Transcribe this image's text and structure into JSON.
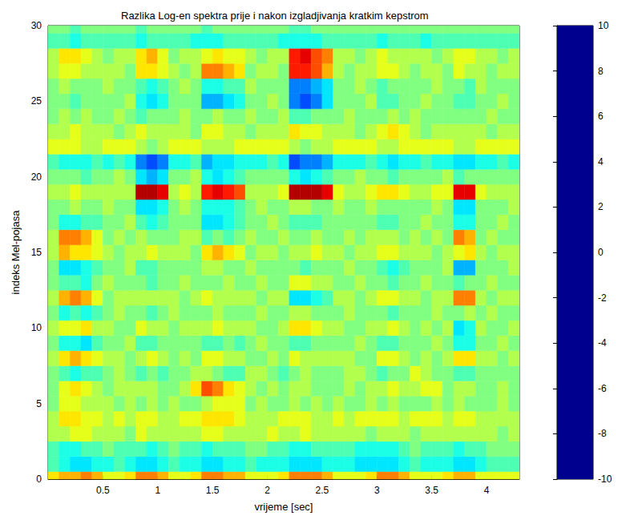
{
  "chart_data": {
    "type": "heatmap",
    "title": "Razlika Log-en spektra prije i nakon izgladjivanja kratkim kepstrom",
    "x_label": "vrijeme [sec]",
    "y_label": "indeks Mel-pojasa",
    "color": "jet",
    "x": [
      0.05,
      0.15,
      0.25,
      0.35,
      0.45,
      0.55,
      0.65,
      0.75,
      0.85,
      0.95,
      1.05,
      1.15,
      1.25,
      1.35,
      1.45,
      1.55,
      1.65,
      1.75,
      1.85,
      1.95,
      2.05,
      2.15,
      2.25,
      2.35,
      2.45,
      2.55,
      2.65,
      2.75,
      2.85,
      2.95,
      3.05,
      3.15,
      3.25,
      3.35,
      3.45,
      3.55,
      3.65,
      3.75,
      3.85,
      3.95,
      4.05,
      4.15,
      4.25
    ],
    "y": [
      0,
      1,
      2,
      3,
      4,
      5,
      6,
      7,
      8,
      9,
      10,
      11,
      12,
      13,
      14,
      15,
      16,
      17,
      18,
      19,
      20,
      21,
      22,
      23,
      24,
      25,
      26,
      27,
      28,
      29,
      30
    ],
    "z": [
      [
        3,
        4,
        4,
        5,
        4,
        2,
        2,
        3,
        5,
        5,
        4,
        2,
        2,
        3,
        5,
        5,
        4,
        4,
        2,
        2,
        2,
        3,
        5,
        5,
        5,
        4,
        2,
        2,
        2,
        3,
        5,
        5,
        4,
        2,
        2,
        2,
        3,
        4,
        4,
        2,
        2,
        2,
        2
      ],
      [
        -1,
        -2,
        -3,
        -3,
        -2,
        -2,
        -1,
        -2,
        -3,
        -3,
        -2,
        -1,
        -2,
        -2,
        -3,
        -3,
        -2,
        -2,
        -1,
        -2,
        -2,
        -2,
        -3,
        -3,
        -3,
        -2,
        -2,
        -2,
        -3,
        -3,
        -3,
        -3,
        -2,
        -1,
        -2,
        -2,
        -2,
        -3,
        -3,
        -2,
        -1,
        -1,
        -1
      ],
      [
        -1,
        -2,
        -2,
        -1,
        -1,
        0,
        -1,
        -1,
        -1,
        -2,
        -1,
        0,
        -1,
        -1,
        -2,
        -1,
        -1,
        -1,
        0,
        0,
        -1,
        -1,
        -2,
        -2,
        -1,
        -1,
        -1,
        -1,
        -2,
        -2,
        -2,
        -2,
        -1,
        0,
        -1,
        -1,
        -1,
        -2,
        -1,
        -1,
        0,
        0,
        0
      ],
      [
        1,
        1,
        2,
        2,
        1,
        1,
        1,
        0,
        2,
        1,
        1,
        1,
        1,
        1,
        2,
        2,
        1,
        1,
        1,
        1,
        2,
        1,
        1,
        2,
        1,
        1,
        1,
        1,
        1,
        0,
        1,
        1,
        1,
        0,
        1,
        1,
        1,
        1,
        1,
        1,
        1,
        0,
        1
      ],
      [
        1,
        3,
        3,
        2,
        2,
        1,
        2,
        1,
        2,
        2,
        1,
        1,
        2,
        2,
        3,
        3,
        3,
        2,
        1,
        1,
        1,
        2,
        2,
        2,
        1,
        1,
        2,
        1,
        2,
        2,
        2,
        2,
        1,
        2,
        2,
        2,
        1,
        2,
        2,
        1,
        1,
        1,
        1
      ],
      [
        0,
        2,
        2,
        1,
        1,
        1,
        0,
        1,
        0,
        1,
        0,
        1,
        0,
        0,
        1,
        2,
        2,
        2,
        0,
        1,
        0,
        0,
        1,
        0,
        1,
        0,
        1,
        0,
        0,
        1,
        0,
        1,
        0,
        0,
        0,
        1,
        0,
        1,
        0,
        0,
        0,
        1,
        0
      ],
      [
        0,
        2,
        3,
        2,
        1,
        0,
        1,
        1,
        1,
        1,
        0,
        0,
        1,
        3,
        6,
        5,
        3,
        2,
        1,
        0,
        1,
        0,
        1,
        1,
        0,
        0,
        0,
        1,
        0,
        1,
        1,
        2,
        1,
        1,
        2,
        2,
        0,
        1,
        1,
        0,
        0,
        1,
        0
      ],
      [
        0,
        -1,
        -2,
        -1,
        -1,
        0,
        1,
        0,
        -1,
        0,
        -1,
        0,
        0,
        1,
        1,
        0,
        -1,
        -1,
        1,
        1,
        0,
        -1,
        0,
        1,
        0,
        0,
        0,
        1,
        1,
        0,
        -1,
        0,
        0,
        2,
        1,
        0,
        0,
        -1,
        -1,
        0,
        0,
        0,
        0
      ],
      [
        1,
        3,
        4,
        3,
        2,
        1,
        1,
        0,
        1,
        2,
        1,
        0,
        1,
        0,
        2,
        2,
        1,
        1,
        0,
        0,
        1,
        0,
        2,
        1,
        1,
        1,
        1,
        1,
        0,
        0,
        2,
        2,
        1,
        0,
        1,
        0,
        1,
        3,
        3,
        1,
        1,
        0,
        1
      ],
      [
        0,
        -2,
        -2,
        -3,
        -1,
        0,
        0,
        1,
        -1,
        -1,
        0,
        0,
        0,
        0,
        -1,
        -1,
        0,
        -1,
        0,
        1,
        0,
        0,
        -1,
        -1,
        0,
        0,
        0,
        0,
        1,
        0,
        -1,
        -1,
        0,
        0,
        0,
        1,
        0,
        -2,
        -2,
        0,
        0,
        1,
        0
      ],
      [
        1,
        2,
        2,
        3,
        1,
        1,
        0,
        0,
        2,
        1,
        1,
        0,
        1,
        1,
        1,
        2,
        1,
        1,
        1,
        0,
        0,
        1,
        3,
        3,
        2,
        1,
        1,
        0,
        0,
        1,
        1,
        2,
        1,
        0,
        1,
        0,
        1,
        -3,
        -2,
        1,
        0,
        0,
        1
      ],
      [
        0,
        -2,
        -1,
        -2,
        -1,
        0,
        1,
        0,
        0,
        -1,
        0,
        1,
        0,
        0,
        0,
        1,
        0,
        0,
        0,
        1,
        0,
        0,
        1,
        1,
        0,
        0,
        0,
        1,
        0,
        0,
        0,
        -1,
        0,
        0,
        0,
        1,
        0,
        0,
        1,
        0,
        1,
        0,
        0
      ],
      [
        1,
        4,
        5,
        4,
        2,
        0,
        1,
        1,
        1,
        1,
        1,
        1,
        0,
        1,
        2,
        1,
        1,
        1,
        1,
        0,
        1,
        1,
        -3,
        -3,
        -2,
        -1,
        1,
        1,
        0,
        1,
        2,
        2,
        1,
        1,
        0,
        1,
        1,
        5,
        5,
        1,
        0,
        1,
        1
      ],
      [
        0,
        -1,
        -1,
        -2,
        0,
        1,
        0,
        0,
        0,
        -1,
        0,
        0,
        1,
        0,
        0,
        0,
        1,
        0,
        0,
        1,
        0,
        0,
        2,
        2,
        1,
        1,
        0,
        0,
        1,
        0,
        0,
        -1,
        0,
        0,
        1,
        0,
        0,
        -1,
        0,
        0,
        1,
        0,
        0
      ],
      [
        0,
        -3,
        -3,
        -2,
        -1,
        0,
        0,
        1,
        -1,
        -1,
        0,
        0,
        0,
        0,
        1,
        1,
        0,
        0,
        1,
        0,
        0,
        0,
        0,
        -1,
        0,
        0,
        0,
        1,
        0,
        0,
        -1,
        -2,
        -1,
        0,
        0,
        0,
        1,
        -4,
        -4,
        0,
        0,
        0,
        1
      ],
      [
        1,
        4,
        3,
        3,
        2,
        1,
        0,
        1,
        1,
        2,
        1,
        1,
        1,
        0,
        3,
        4,
        3,
        2,
        0,
        1,
        1,
        0,
        1,
        1,
        2,
        1,
        1,
        0,
        1,
        1,
        2,
        2,
        1,
        1,
        1,
        0,
        1,
        2,
        3,
        1,
        0,
        1,
        1
      ],
      [
        1,
        5,
        5,
        4,
        2,
        0,
        1,
        0,
        1,
        0,
        0,
        0,
        1,
        1,
        -1,
        0,
        -1,
        0,
        1,
        0,
        0,
        1,
        0,
        0,
        1,
        0,
        0,
        1,
        0,
        1,
        1,
        1,
        0,
        1,
        0,
        1,
        0,
        5,
        4,
        0,
        1,
        0,
        0
      ],
      [
        0,
        -2,
        -2,
        -1,
        -1,
        0,
        0,
        1,
        -1,
        -2,
        -1,
        0,
        0,
        0,
        -3,
        -3,
        -2,
        -1,
        0,
        0,
        1,
        0,
        -1,
        -1,
        -1,
        0,
        0,
        0,
        0,
        0,
        -1,
        -1,
        0,
        0,
        1,
        0,
        0,
        -2,
        -2,
        0,
        0,
        1,
        0
      ],
      [
        0,
        0,
        1,
        0,
        0,
        1,
        0,
        0,
        -3,
        -3,
        -2,
        0,
        1,
        0,
        -2,
        -2,
        -2,
        -1,
        0,
        1,
        0,
        0,
        1,
        1,
        0,
        0,
        1,
        0,
        0,
        1,
        0,
        0,
        0,
        0,
        0,
        1,
        0,
        -3,
        -3,
        0,
        0,
        0,
        1
      ],
      [
        1,
        1,
        2,
        1,
        1,
        1,
        1,
        1,
        9,
        9,
        8,
        1,
        2,
        1,
        7,
        8,
        7,
        6,
        1,
        1,
        1,
        2,
        9,
        9,
        9,
        8,
        2,
        1,
        1,
        2,
        3,
        3,
        2,
        1,
        1,
        2,
        2,
        8,
        8,
        2,
        1,
        1,
        1
      ],
      [
        0,
        0,
        0,
        -1,
        0,
        0,
        1,
        0,
        -3,
        -4,
        -3,
        0,
        0,
        1,
        -2,
        -3,
        -2,
        -1,
        0,
        0,
        0,
        0,
        -2,
        -3,
        -2,
        -1,
        0,
        0,
        1,
        0,
        0,
        -1,
        0,
        0,
        0,
        0,
        1,
        -1,
        0,
        0,
        0,
        0,
        0
      ],
      [
        -1,
        -2,
        -2,
        -2,
        -1,
        -2,
        -1,
        -2,
        -5,
        -6,
        -5,
        -2,
        -2,
        -1,
        -4,
        -3,
        -3,
        -2,
        -2,
        -2,
        -1,
        -2,
        -6,
        -5,
        -5,
        -4,
        -2,
        -2,
        -2,
        -1,
        -2,
        -3,
        -2,
        -2,
        -1,
        -2,
        -2,
        -3,
        -3,
        -2,
        -2,
        -1,
        -2
      ],
      [
        2,
        2,
        2,
        1,
        1,
        2,
        2,
        2,
        1,
        0,
        1,
        2,
        2,
        2,
        1,
        1,
        1,
        2,
        2,
        2,
        2,
        2,
        1,
        0,
        1,
        1,
        2,
        2,
        2,
        2,
        1,
        1,
        2,
        2,
        2,
        2,
        2,
        1,
        1,
        2,
        2,
        2,
        2
      ],
      [
        1,
        1,
        2,
        1,
        1,
        1,
        0,
        1,
        2,
        1,
        1,
        1,
        1,
        0,
        2,
        2,
        1,
        1,
        0,
        1,
        1,
        1,
        3,
        2,
        2,
        1,
        1,
        1,
        0,
        1,
        2,
        3,
        2,
        1,
        0,
        1,
        1,
        1,
        1,
        1,
        0,
        1,
        1
      ],
      [
        0,
        1,
        0,
        1,
        0,
        0,
        1,
        0,
        -1,
        0,
        0,
        0,
        1,
        0,
        0,
        1,
        0,
        0,
        1,
        0,
        0,
        1,
        -1,
        -1,
        0,
        0,
        0,
        1,
        0,
        0,
        0,
        1,
        0,
        1,
        0,
        0,
        0,
        0,
        0,
        0,
        1,
        0,
        0
      ],
      [
        0,
        0,
        -1,
        0,
        0,
        0,
        0,
        1,
        -2,
        -3,
        -2,
        0,
        0,
        0,
        -4,
        -4,
        -3,
        -2,
        0,
        0,
        1,
        0,
        -5,
        -6,
        -5,
        -3,
        0,
        0,
        0,
        1,
        -1,
        -1,
        0,
        0,
        1,
        0,
        0,
        -1,
        -1,
        0,
        0,
        1,
        0
      ],
      [
        0,
        1,
        0,
        0,
        0,
        1,
        0,
        0,
        -1,
        -2,
        -1,
        0,
        1,
        0,
        -2,
        -2,
        -1,
        -1,
        1,
        0,
        0,
        0,
        -5,
        -5,
        -4,
        -3,
        0,
        0,
        1,
        0,
        -1,
        0,
        0,
        0,
        0,
        1,
        0,
        0,
        -1,
        1,
        0,
        0,
        0
      ],
      [
        1,
        2,
        2,
        1,
        1,
        1,
        1,
        0,
        3,
        3,
        2,
        1,
        0,
        1,
        5,
        5,
        4,
        3,
        0,
        1,
        1,
        0,
        7,
        7,
        6,
        4,
        1,
        0,
        1,
        1,
        2,
        2,
        1,
        0,
        1,
        1,
        0,
        2,
        1,
        1,
        0,
        1,
        1
      ],
      [
        1,
        3,
        3,
        2,
        1,
        0,
        1,
        1,
        3,
        4,
        2,
        0,
        1,
        1,
        2,
        3,
        2,
        2,
        1,
        0,
        1,
        1,
        7,
        8,
        6,
        5,
        1,
        1,
        0,
        1,
        2,
        1,
        1,
        1,
        1,
        0,
        1,
        2,
        2,
        1,
        1,
        0,
        1
      ],
      [
        -1,
        -1,
        -2,
        -1,
        -1,
        -1,
        -1,
        -1,
        -2,
        -1,
        -1,
        -1,
        -1,
        -2,
        -2,
        -2,
        -1,
        -1,
        -1,
        -1,
        -1,
        -2,
        -2,
        -2,
        -2,
        -1,
        -1,
        -1,
        -1,
        -1,
        -2,
        -1,
        -1,
        -1,
        -2,
        -1,
        -1,
        -1,
        -1,
        -1,
        -1,
        -1,
        -1
      ],
      [
        0,
        0,
        -1,
        0,
        0,
        0,
        0,
        0,
        -1,
        0,
        0,
        0,
        0,
        0,
        -1,
        0,
        0,
        0,
        0,
        0,
        0,
        0,
        -1,
        -1,
        0,
        0,
        0,
        0,
        0,
        0,
        0,
        0,
        0,
        0,
        0,
        0,
        0,
        0,
        0,
        0,
        0,
        0,
        0
      ]
    ],
    "xlim": [
      0,
      4.3
    ],
    "xticks": [
      0.5,
      1,
      1.5,
      2,
      2.5,
      3,
      3.5,
      4
    ],
    "ylim": [
      0,
      30
    ],
    "yticks": [
      0,
      5,
      10,
      15,
      20,
      25,
      30
    ],
    "colorbar_range": [
      -10,
      10
    ],
    "colorbar_ticks": [
      -10,
      -8,
      -6,
      -4,
      -2,
      0,
      2,
      4,
      6,
      8,
      10
    ]
  }
}
